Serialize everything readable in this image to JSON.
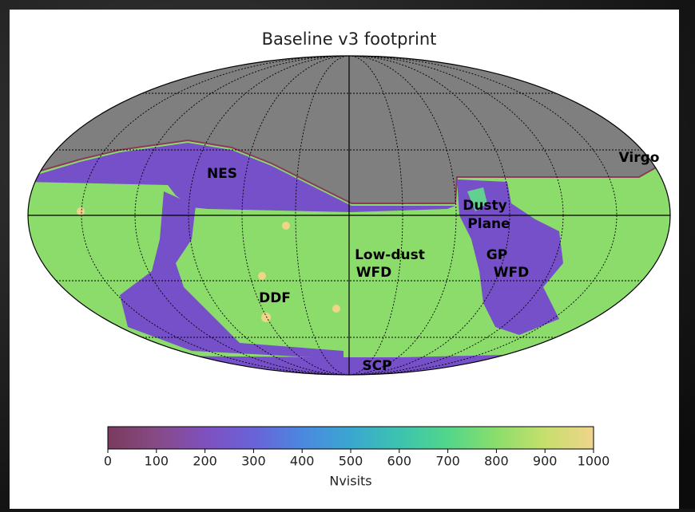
{
  "chart_data": {
    "type": "skymap",
    "title": "Baseline v3 footprint",
    "annotations": [
      "NES",
      "Virgo",
      "Dusty",
      "Plane",
      "GP",
      "WFD",
      "Low-dust",
      "WFD",
      "DDF",
      "SCP"
    ],
    "colorbar": {
      "label": "Nvisits",
      "lim": [
        0,
        1000
      ],
      "ticks": [
        0,
        100,
        200,
        300,
        400,
        500,
        600,
        700,
        800,
        900,
        1000
      ]
    }
  }
}
